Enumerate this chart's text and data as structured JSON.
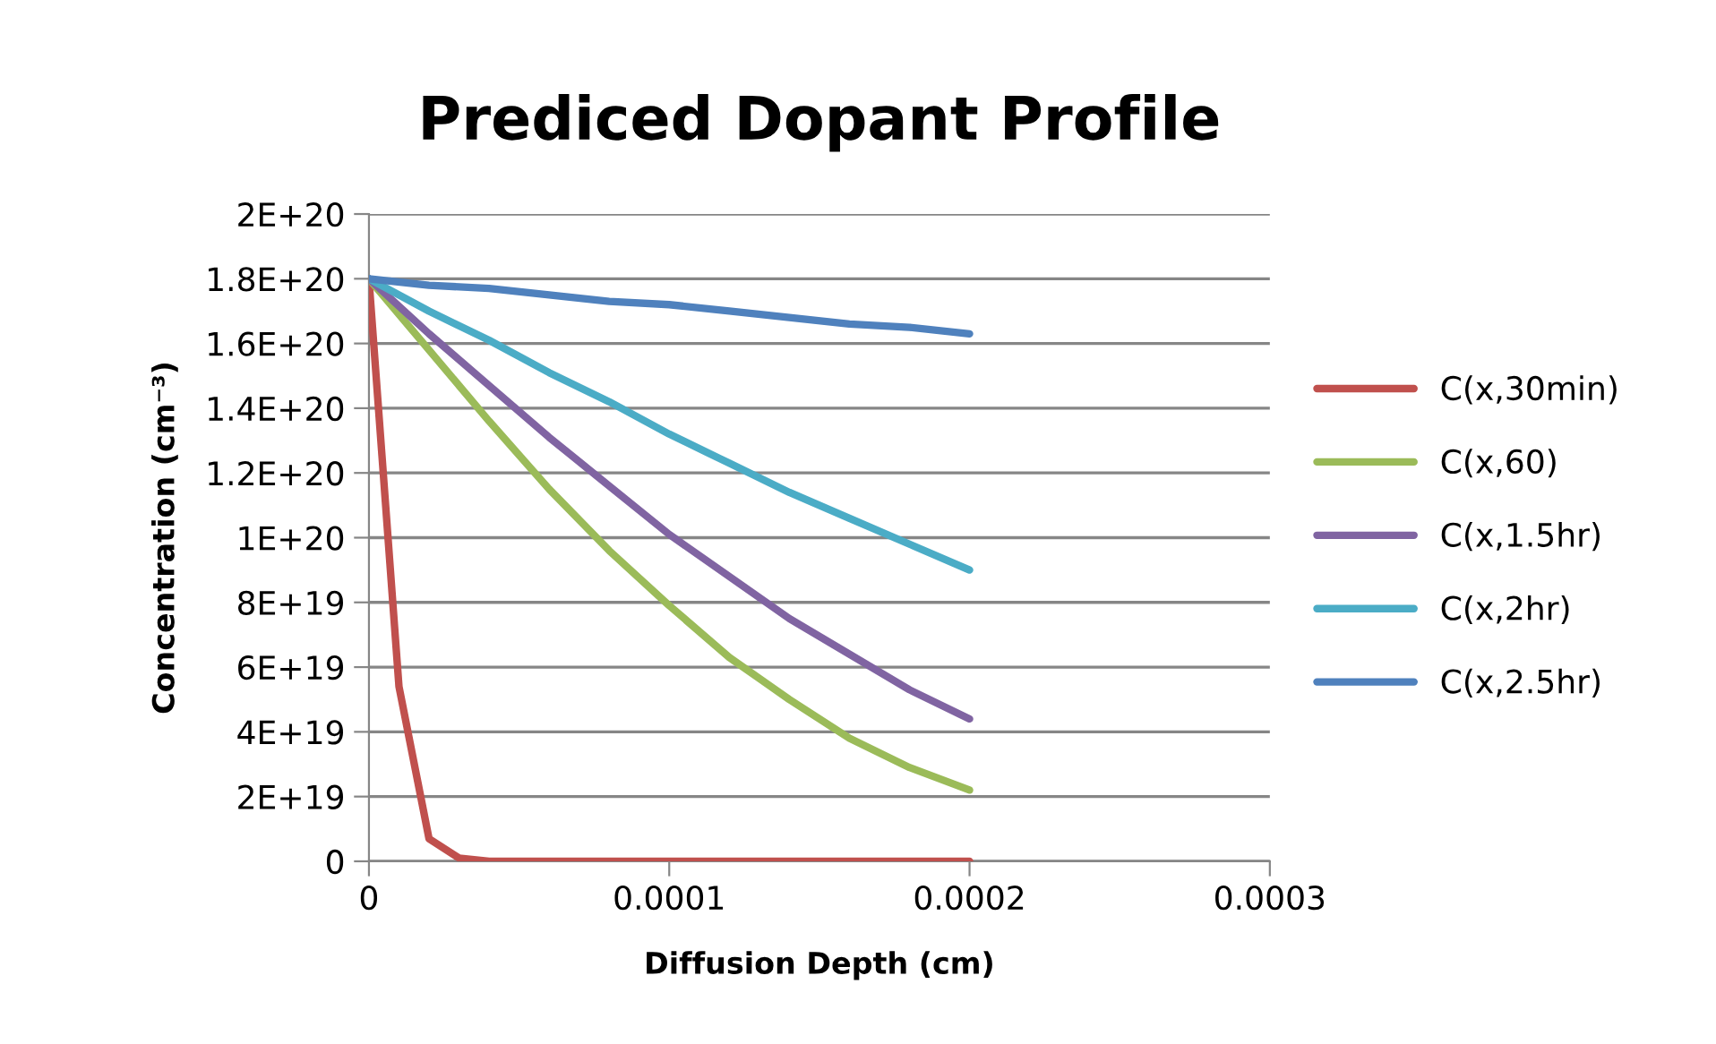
{
  "chart_data": {
    "type": "line",
    "title": "Prediced Dopant Profile",
    "xlabel": "Diffusion Depth (cm)",
    "ylabel": "Concentration (cm⁻³)",
    "x": [
      0,
      2e-05,
      4e-05,
      6e-05,
      8e-05,
      0.0001,
      0.00012,
      0.00014,
      0.00016,
      0.00018,
      0.0002
    ],
    "series": [
      {
        "name": "C(x,30min)",
        "color": "#c0504d",
        "x": [
          0,
          1e-05,
          2e-05,
          3e-05,
          4e-05,
          0.0002
        ],
        "values": [
          1.8e+20,
          5.4e+19,
          7e+18,
          1e+18,
          0,
          0
        ]
      },
      {
        "name": "C(x,60)",
        "color": "#9bbb59",
        "values": [
          1.8e+20,
          1.58e+20,
          1.36e+20,
          1.15e+20,
          9.6e+19,
          7.9e+19,
          6.3e+19,
          5e+19,
          3.8e+19,
          2.9e+19,
          2.2e+19
        ]
      },
      {
        "name": "C(x,1.5hr)",
        "color": "#8064a2",
        "values": [
          1.8e+20,
          1.63e+20,
          1.47e+20,
          1.31e+20,
          1.16e+20,
          1.01e+20,
          8.8e+19,
          7.5e+19,
          6.4e+19,
          5.3e+19,
          4.4e+19
        ]
      },
      {
        "name": "C(x,2hr)",
        "color": "#4bacc6",
        "values": [
          1.8e+20,
          1.7e+20,
          1.61e+20,
          1.51e+20,
          1.42e+20,
          1.32e+20,
          1.23e+20,
          1.14e+20,
          1.06e+20,
          9.8e+19,
          9e+19
        ]
      },
      {
        "name": "C(x,2.5hr)",
        "color": "#4f81bd",
        "values": [
          1.8e+20,
          1.78e+20,
          1.77e+20,
          1.75e+20,
          1.73e+20,
          1.72e+20,
          1.7e+20,
          1.68e+20,
          1.66e+20,
          1.65e+20,
          1.63e+20
        ]
      }
    ],
    "xlim": [
      0,
      0.0003
    ],
    "xticks": [
      0,
      0.0001,
      0.0002,
      0.0003
    ],
    "ylim": [
      0,
      2e+20
    ],
    "yticks": [
      0,
      {
        "value": 2e+19,
        "label": "2E+19"
      },
      {
        "value": 4e+19,
        "label": "4E+19"
      },
      {
        "value": 6e+19,
        "label": "6E+19"
      },
      {
        "value": 8e+19,
        "label": "8E+19"
      },
      {
        "value": 1e+20,
        "label": "1E+20"
      },
      {
        "value": 1.2e+20,
        "label": "1.2E+20"
      },
      {
        "value": 1.4e+20,
        "label": "1.4E+20"
      },
      {
        "value": 1.6e+20,
        "label": "1.6E+20"
      },
      {
        "value": 1.8e+20,
        "label": "1.8E+20"
      },
      {
        "value": 2e+20,
        "label": "2E+20"
      }
    ],
    "grid": "y",
    "legend": "right",
    "marker": "none",
    "line_style": "solid"
  }
}
